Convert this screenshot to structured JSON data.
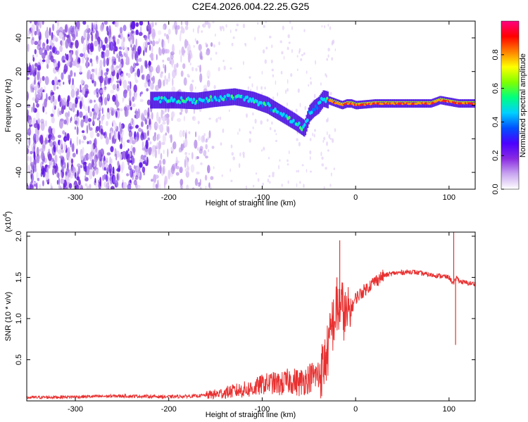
{
  "chart_data": [
    {
      "type": "heatmap",
      "title": "C2E4.2026.004.22.25.G25",
      "xlabel": "Height of straight line (km)",
      "ylabel": "Frequency (Hz)",
      "xlim": [
        -352,
        128
      ],
      "ylim": [
        -50,
        50
      ],
      "xticks": [
        -300,
        -200,
        -100,
        0,
        100
      ],
      "xtick_labels": [
        "-300",
        "-200",
        "-100",
        "0",
        "100"
      ],
      "yticks": [
        -40,
        -20,
        0,
        20,
        40
      ],
      "ytick_labels": [
        "-40",
        "-20",
        "0",
        "20",
        "40"
      ],
      "ridge": {
        "description": "spectral ridge (frequency vs height)",
        "x": [
          -215,
          -190,
          -170,
          -150,
          -130,
          -110,
          -95,
          -80,
          -65,
          -55,
          -50,
          -45,
          -40,
          -35,
          -30,
          -25,
          -20,
          -15,
          -10,
          -5,
          0,
          20,
          50,
          80,
          90,
          100,
          110,
          128
        ],
        "y": [
          3,
          3,
          2.5,
          4,
          5,
          3,
          0,
          -5,
          -10,
          -14,
          -5,
          -2,
          0,
          4,
          3,
          2,
          1,
          0,
          1,
          1,
          0,
          1,
          1,
          1,
          3,
          2,
          1,
          1
        ]
      },
      "colorbar": {
        "label": "Normalized spectral amplitude",
        "range": [
          0,
          1
        ],
        "ticks": [
          0.0,
          0.2,
          0.4,
          0.6,
          0.8
        ],
        "tick_labels": [
          "0.0",
          "0.2",
          "0.4",
          "0.6",
          "0.8"
        ],
        "colors": [
          "#ffffff",
          "#c9a6f0",
          "#8a2be2",
          "#4b00ff",
          "#0050ff",
          "#00d0ff",
          "#00ff80",
          "#80ff00",
          "#ffff00",
          "#ff8000",
          "#ff0000",
          "#ff0080"
        ]
      }
    },
    {
      "type": "line",
      "title": "",
      "xlabel": "Height of straight line (km)",
      "ylabel": "SNR (10 * v/v)",
      "y_multiplier": "(x10",
      "y_multiplier_exp": "4",
      "y_multiplier_close": ")",
      "xlim": [
        -352,
        128
      ],
      "ylim": [
        0,
        2.05
      ],
      "xticks": [
        -300,
        -200,
        -100,
        0,
        100
      ],
      "xtick_labels": [
        "-300",
        "-200",
        "-100",
        "0",
        "100"
      ],
      "yticks": [
        0.5,
        1.0,
        1.5,
        2.0
      ],
      "ytick_labels": [
        "0.5",
        "1.0",
        "1.5",
        "2.0"
      ],
      "color": "#e83030",
      "series": [
        {
          "name": "SNR",
          "x": [
            -352,
            -300,
            -250,
            -200,
            -170,
            -150,
            -130,
            -110,
            -100,
            -90,
            -80,
            -70,
            -60,
            -50,
            -40,
            -35,
            -30,
            -25,
            -20,
            -15,
            -10,
            -5,
            0,
            10,
            20,
            30,
            40,
            50,
            60,
            70,
            80,
            90,
            100,
            105,
            108,
            112,
            120,
            128
          ],
          "y": [
            0.04,
            0.05,
            0.06,
            0.05,
            0.06,
            0.08,
            0.12,
            0.15,
            0.2,
            0.22,
            0.2,
            0.25,
            0.22,
            0.28,
            0.32,
            0.4,
            0.6,
            0.9,
            1.1,
            1.15,
            1.0,
            1.1,
            1.25,
            1.35,
            1.45,
            1.52,
            1.55,
            1.56,
            1.57,
            1.55,
            1.53,
            1.52,
            1.5,
            1.42,
            1.5,
            1.45,
            1.43,
            1.42
          ]
        }
      ],
      "spikes": {
        "x": [
          -17,
          -20,
          -25,
          105,
          107
        ],
        "y": [
          1.95,
          1.5,
          1.2,
          2.05,
          0.68
        ]
      }
    }
  ]
}
